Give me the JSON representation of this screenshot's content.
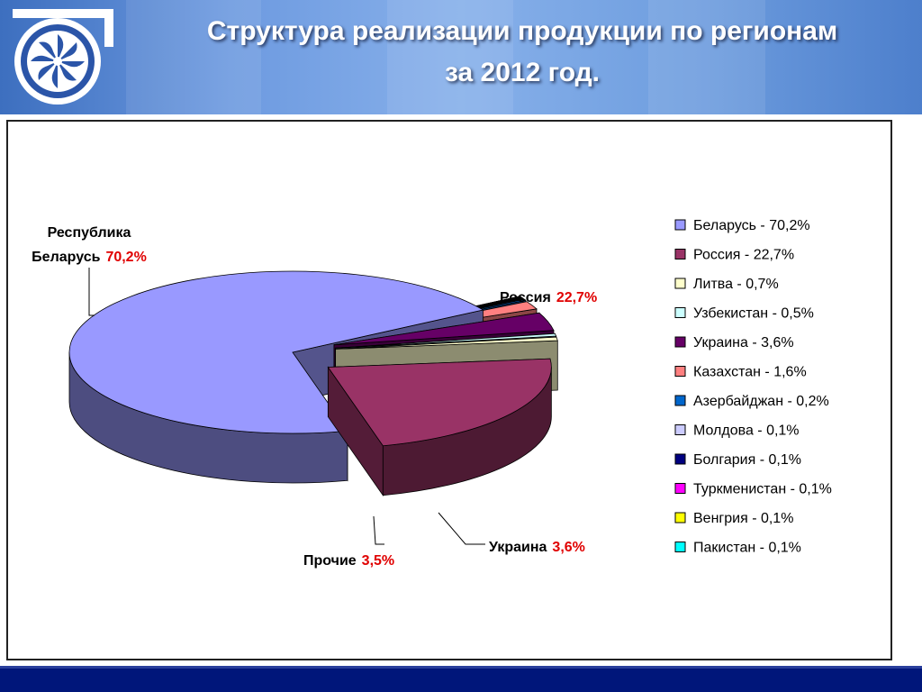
{
  "slide": {
    "title_line1": "Структура реализации продукции по регионам",
    "title_line2": "за 2012 год."
  },
  "colors": {
    "header_blue": "#3d6fbf",
    "footer_navy": "#00167a",
    "label_value_red": "#e00000"
  },
  "chart_data": {
    "type": "pie",
    "style": "3d-exploded",
    "title": "",
    "legend_position": "right",
    "slices": [
      {
        "name": "Беларусь",
        "value": 70.2,
        "legend": "Беларусь - 70,2%",
        "color": "#9999ff"
      },
      {
        "name": "Россия",
        "value": 22.7,
        "legend": "Россия - 22,7%",
        "color": "#993366"
      },
      {
        "name": "Литва",
        "value": 0.7,
        "legend": "Литва - 0,7%",
        "color": "#ffffcc"
      },
      {
        "name": "Узбекистан",
        "value": 0.5,
        "legend": "Узбекистан - 0,5%",
        "color": "#ccffff"
      },
      {
        "name": "Украина",
        "value": 3.6,
        "legend": "Украина - 3,6%",
        "color": "#660066"
      },
      {
        "name": "Казахстан",
        "value": 1.6,
        "legend": "Казахстан - 1,6%",
        "color": "#ff8080"
      },
      {
        "name": "Азербайджан",
        "value": 0.2,
        "legend": "Азербайджан - 0,2%",
        "color": "#0066cc"
      },
      {
        "name": "Молдова",
        "value": 0.1,
        "legend": "Молдова - 0,1%",
        "color": "#ccccff"
      },
      {
        "name": "Болгария",
        "value": 0.1,
        "legend": "Болгария - 0,1%",
        "color": "#000080"
      },
      {
        "name": "Туркменистан",
        "value": 0.1,
        "legend": "Туркменистан - 0,1%",
        "color": "#ff00ff"
      },
      {
        "name": "Венгрия",
        "value": 0.1,
        "legend": "Венгрия - 0,1%",
        "color": "#ffff00"
      },
      {
        "name": "Пакистан",
        "value": 0.1,
        "legend": "Пакистан - 0,1%",
        "color": "#00ffff"
      }
    ],
    "unlisted_remainder": {
      "color": "#008080"
    },
    "data_labels": {
      "belarus": {
        "line1": "Республика",
        "line2": "Беларусь",
        "value": "70,2%"
      },
      "russia": {
        "name": "Россия",
        "value": "22,7%"
      },
      "ukraine": {
        "name": "Украина",
        "value": "3,6%"
      },
      "other": {
        "name": "Прочие",
        "value": "3,5%"
      }
    }
  }
}
